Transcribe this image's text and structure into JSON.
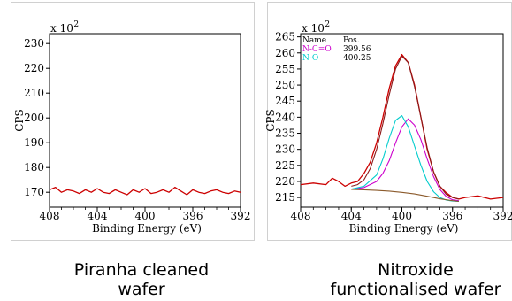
{
  "captions": {
    "left": [
      "Piranha cleaned",
      "wafer"
    ],
    "right": [
      "Nitroxide",
      "functionalised wafer"
    ]
  },
  "colors": {
    "raw_data": "#cc0000",
    "envelope": "#8b1a1a",
    "n_c_o": "#cc00cc",
    "n_o": "#00cccc",
    "background": "#8b5a2b"
  },
  "chart_data": [
    {
      "type": "line",
      "ylabel": "CPS",
      "xlabel": "Binding Energy (eV)",
      "y_multiplier_label": "x 10",
      "y_multiplier_exp": "2",
      "x_reversed": true,
      "xlim": [
        408,
        392
      ],
      "ylim": [
        164,
        234
      ],
      "xticks": [
        "408",
        "404",
        "400",
        "396",
        "392"
      ],
      "yticks": [
        "170",
        "180",
        "190",
        "200",
        "210",
        "220",
        "230"
      ],
      "series": [
        {
          "color": "#cc0000",
          "x": [
            408,
            407.5,
            407,
            406.5,
            406,
            405.5,
            405,
            404.5,
            404,
            403.5,
            403,
            402.5,
            402,
            401.5,
            401,
            400.5,
            400,
            399.5,
            399,
            398.5,
            398,
            397.5,
            397,
            396.5,
            396,
            395.5,
            395,
            394.5,
            394,
            393.5,
            393,
            392.5,
            392
          ],
          "y": [
            171,
            172,
            170,
            171,
            170.5,
            169.5,
            171,
            170,
            171.5,
            170,
            169.5,
            171,
            170,
            169,
            171,
            170,
            171.5,
            169.5,
            170,
            171,
            170,
            172,
            170.5,
            169,
            171,
            170,
            169.5,
            170.5,
            171,
            170,
            169.5,
            170.5,
            170
          ]
        }
      ]
    },
    {
      "type": "line",
      "ylabel": "CPS",
      "xlabel": "Binding Energy (eV)",
      "y_multiplier_label": "x 10",
      "y_multiplier_exp": "2",
      "x_reversed": true,
      "xlim": [
        408,
        392
      ],
      "ylim": [
        212,
        266
      ],
      "xticks": [
        "408",
        "404",
        "400",
        "396",
        "392"
      ],
      "yticks": [
        "215",
        "220",
        "225",
        "230",
        "235",
        "240",
        "245",
        "250",
        "255",
        "260",
        "265"
      ],
      "legend": {
        "header_name": "Name",
        "header_pos": "Pos.",
        "entries": [
          {
            "name": "N-C=O",
            "pos": "399.56",
            "color": "#cc00cc"
          },
          {
            "name": "N-O",
            "pos": "400.25",
            "color": "#00cccc"
          }
        ]
      },
      "series": [
        {
          "color": "#cc0000",
          "x": [
            408,
            407,
            406,
            405.5,
            405,
            404.5,
            404,
            403.5,
            403,
            402.5,
            402,
            401.5,
            401,
            400.5,
            400,
            399.5,
            399,
            398.5,
            398,
            397.5,
            397,
            396.5,
            396,
            395.5,
            395,
            394,
            393,
            392
          ],
          "y": [
            219,
            219.5,
            219,
            221,
            220,
            218.5,
            219.5,
            220,
            222.5,
            226,
            232,
            240,
            249,
            256,
            259.5,
            257,
            250,
            240,
            230,
            223,
            218.5,
            216.5,
            215,
            214.5,
            215,
            215.5,
            214.5,
            215
          ]
        },
        {
          "color": "#8b1a1a",
          "x": [
            404,
            403.5,
            403,
            402.5,
            402,
            401.5,
            401,
            400.5,
            400,
            399.5,
            399,
            398.5,
            398,
            397.5,
            397,
            396.5,
            396,
            395.5
          ],
          "y": [
            218.5,
            219,
            220.5,
            224,
            230,
            238,
            247,
            255,
            259,
            257,
            249.5,
            240,
            230.5,
            223,
            218.5,
            216,
            215,
            214.5
          ]
        },
        {
          "color": "#cc00cc",
          "x": [
            404,
            403,
            402,
            401.5,
            401,
            400.5,
            400,
            399.5,
            399,
            398.5,
            398,
            397.5,
            397,
            396.5,
            396,
            395.5
          ],
          "y": [
            217.6,
            218.1,
            220,
            222.5,
            226.5,
            232,
            237,
            239.5,
            237.5,
            233,
            227,
            221.5,
            217.5,
            215.3,
            214.3,
            214
          ]
        },
        {
          "color": "#00cccc",
          "x": [
            404,
            403,
            402,
            401.5,
            401,
            400.5,
            400,
            399.5,
            399,
            398.5,
            398,
            397.5,
            397,
            396.5,
            396,
            395.5
          ],
          "y": [
            217.6,
            218.5,
            222,
            227,
            233.5,
            239,
            240.5,
            237,
            231,
            225,
            220,
            216.8,
            215,
            214.2,
            213.9,
            213.8
          ]
        },
        {
          "color": "#8b5a2b",
          "x": [
            404,
            403,
            402,
            401,
            400,
            399,
            398,
            397,
            396,
            395.5
          ],
          "y": [
            217.5,
            217.4,
            217.2,
            217,
            216.6,
            216.1,
            215.4,
            214.6,
            214,
            213.8
          ]
        }
      ]
    }
  ]
}
